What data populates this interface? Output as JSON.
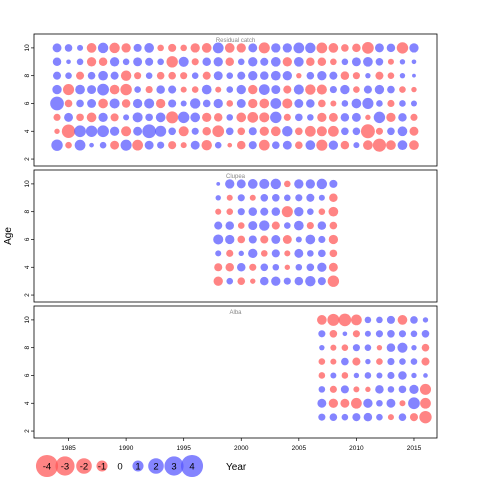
{
  "chart_data": {
    "type": "bubble",
    "xlabel": "Year",
    "ylabel": "Age",
    "xlim": [
      1982,
      2017
    ],
    "ylim": [
      1.5,
      11
    ],
    "x_ticks": [
      1985,
      1990,
      1995,
      2000,
      2005,
      2010,
      2015
    ],
    "y_ticks": [
      2,
      4,
      6,
      8,
      10
    ],
    "colors": {
      "positive": "#5555ff",
      "negative": "#ff5555",
      "opacity": 0.72
    },
    "legend": {
      "placement": "bottom-left",
      "values": [
        -4,
        -3,
        -2,
        -1,
        0,
        1,
        2,
        3,
        4
      ],
      "labels": [
        "-4",
        "-3",
        "-2",
        "-1",
        "0",
        "1",
        "2",
        "3",
        "4"
      ]
    },
    "panels": [
      {
        "title": "Residual catch",
        "years": [
          1984,
          1985,
          1986,
          1987,
          1988,
          1989,
          1990,
          1991,
          1992,
          1993,
          1994,
          1995,
          1996,
          1997,
          1998,
          1999,
          2000,
          2001,
          2002,
          2003,
          2004,
          2005,
          2006,
          2007,
          2008,
          2009,
          2010,
          2011,
          2012,
          2013,
          2014,
          2015
        ],
        "ages": [
          3,
          4,
          5,
          6,
          7,
          8,
          9,
          10
        ],
        "residuals": [
          [
            1.8,
            -0.6,
            1.6,
            0.3,
            0.6,
            -1.1,
            1.7,
            -1.6,
            1.1,
            0.7,
            -0.9,
            -0.5,
            1.1,
            -1.5,
            0.6,
            -0.3,
            -1.0,
            0.9,
            -1.6,
            0.8,
            1.1,
            -0.8,
            1.3,
            -1.7,
            1.2,
            -1.0,
            0.5,
            -1.3,
            -2.4,
            -1.3,
            1.3,
            -1.3
          ],
          [
            -0.4,
            -2.5,
            1.9,
            1.8,
            1.9,
            1.2,
            -1.4,
            1.1,
            2.6,
            1.7,
            0.8,
            -1.4,
            0.7,
            -1.0,
            -1.9,
            0.8,
            -0.8,
            0.9,
            -1.2,
            -1.3,
            1.5,
            -0.8,
            -1.6,
            -1.4,
            -1.6,
            0.8,
            0.8,
            -2.7,
            -0.7,
            0.8,
            1.3,
            -1.1
          ],
          [
            -0.7,
            1.1,
            -0.8,
            -1.3,
            1.2,
            -0.9,
            0.5,
            1.4,
            0.8,
            1.3,
            -2.0,
            1.8,
            1.3,
            -1.2,
            -1.0,
            0.6,
            -1.3,
            -1.6,
            -1.4,
            1.8,
            -0.7,
            0.8,
            0.6,
            -1.2,
            -1.1,
            1.0,
            1.1,
            -0.4,
            1.8,
            -1.2,
            1.0,
            -0.7
          ],
          [
            2.6,
            -0.8,
            0.8,
            1.1,
            -1.3,
            1.4,
            -1.0,
            1.2,
            1.4,
            -1.2,
            0.9,
            0.5,
            1.5,
            0.8,
            1.2,
            -0.6,
            1.1,
            -1.2,
            -1.3,
            1.6,
            -1.4,
            1.1,
            1.0,
            -0.8,
            -0.5,
            0.6,
            1.3,
            1.7,
            0.6,
            -0.7,
            0.6,
            0.5
          ],
          [
            1.2,
            -1.7,
            1.3,
            1.1,
            1.9,
            -1.3,
            -1.8,
            0.6,
            -0.7,
            1.0,
            0.9,
            -0.5,
            -0.6,
            1.3,
            -0.5,
            0.6,
            1.2,
            -1.2,
            1.6,
            1.1,
            -0.9,
            1.4,
            -1.5,
            -1.4,
            0.7,
            1.2,
            -0.6,
            0.9,
            1.2,
            0.8,
            -0.6,
            -0.4
          ],
          [
            0.9,
            0.6,
            -0.9,
            0.8,
            1.3,
            0.9,
            -1.5,
            -0.7,
            0.6,
            -0.8,
            -0.8,
            -0.7,
            0.6,
            -0.9,
            1.1,
            0.6,
            0.9,
            1.2,
            1.0,
            1.3,
            1.2,
            -0.4,
            0.8,
            1.2,
            0.9,
            -1.0,
            -0.7,
            0.4,
            -0.9,
            -0.6,
            0.4,
            0.2
          ],
          [
            1.0,
            0.3,
            0.6,
            -1.2,
            -1.0,
            1.2,
            0.6,
            1.1,
            0.9,
            0.6,
            -1.8,
            1.4,
            -0.7,
            1.0,
            1.2,
            -1.0,
            0.6,
            1.2,
            0.9,
            1.3,
            -1.2,
            1.3,
            -1.0,
            -1.0,
            -0.6,
            0.6,
            1.1,
            1.3,
            0.8,
            -0.5,
            0.4,
            0.3
          ],
          [
            1.1,
            0.8,
            0.5,
            -1.3,
            1.5,
            -1.5,
            -1.2,
            0.9,
            1.3,
            -0.6,
            -0.9,
            -0.6,
            -1.2,
            -1.3,
            1.6,
            -1.3,
            -1.2,
            1.1,
            -1.7,
            1.2,
            1.2,
            1.6,
            1.5,
            -1.6,
            -1.3,
            -0.8,
            -1.0,
            -1.9,
            1.1,
            1.0,
            -1.8,
            1.2
          ]
        ]
      },
      {
        "title": "Clupea",
        "years": [
          1998,
          1999,
          2000,
          2001,
          2002,
          2003,
          2004,
          2005,
          2006,
          2007,
          2008
        ],
        "ages": [
          3,
          4,
          5,
          6,
          7,
          8,
          9,
          10
        ],
        "residuals": [
          [
            -1.2,
            0.6,
            -0.8,
            -0.4,
            1.0,
            1.2,
            0.7,
            1.0,
            1.5,
            0.9,
            -1.8
          ],
          [
            -0.9,
            -1.0,
            1.0,
            -0.7,
            0.8,
            0.6,
            -0.4,
            0.6,
            0.8,
            1.2,
            -1.1
          ],
          [
            0.5,
            -0.7,
            0.4,
            1.2,
            -0.6,
            0.9,
            -0.5,
            1.1,
            0.6,
            0.8,
            -0.8
          ],
          [
            1.4,
            1.2,
            -0.8,
            0.9,
            -0.9,
            1.1,
            -1.1,
            0.5,
            1.3,
            0.7,
            -1.2
          ],
          [
            0.9,
            1.0,
            -0.6,
            1.1,
            1.5,
            -0.9,
            0.6,
            1.3,
            -0.7,
            1.0,
            -0.8
          ],
          [
            -0.5,
            -0.6,
            0.7,
            1.0,
            0.9,
            1.0,
            -1.7,
            1.2,
            0.6,
            -0.6,
            -1.3
          ],
          [
            0.4,
            -0.5,
            0.7,
            -0.5,
            0.8,
            0.8,
            0.6,
            0.7,
            0.9,
            0.5,
            -1.0
          ],
          [
            0.2,
            1.2,
            1.1,
            1.3,
            1.4,
            1.5,
            -0.6,
            1.2,
            1.2,
            1.5,
            0.9
          ]
        ]
      },
      {
        "title": "Alba",
        "years": [
          2007,
          2008,
          2009,
          2010,
          2011,
          2012,
          2013,
          2014,
          2015,
          2016
        ],
        "ages": [
          3,
          4,
          5,
          6,
          7,
          8,
          9,
          10
        ],
        "residuals": [
          [
            0.7,
            0.8,
            0.6,
            0.9,
            1.0,
            0.6,
            -0.5,
            0.8,
            -0.9,
            -2.1
          ],
          [
            1.1,
            -1.2,
            -1.1,
            -1.6,
            1.2,
            0.6,
            1.1,
            -0.5,
            1.9,
            -1.6
          ],
          [
            0.6,
            -0.7,
            0.9,
            -0.5,
            -0.4,
            1.0,
            0.6,
            0.8,
            1.2,
            -1.7
          ],
          [
            -0.6,
            0.5,
            -0.6,
            0.4,
            0.6,
            0.5,
            0.7,
            1.0,
            0.4,
            0.3
          ],
          [
            -0.6,
            -0.5,
            0.8,
            -0.9,
            0.4,
            -0.6,
            0.7,
            0.6,
            0.6,
            -0.9
          ],
          [
            0.4,
            -0.5,
            -0.6,
            0.7,
            0.6,
            -0.4,
            1.0,
            1.4,
            0.4,
            -0.8
          ],
          [
            0.7,
            -0.8,
            0.3,
            -0.7,
            0.5,
            0.7,
            0.8,
            0.7,
            0.6,
            0.8
          ],
          [
            -1.3,
            -2.0,
            -2.2,
            -1.6,
            0.6,
            0.6,
            0.9,
            -1.3,
            0.8,
            0.4
          ]
        ]
      }
    ]
  }
}
